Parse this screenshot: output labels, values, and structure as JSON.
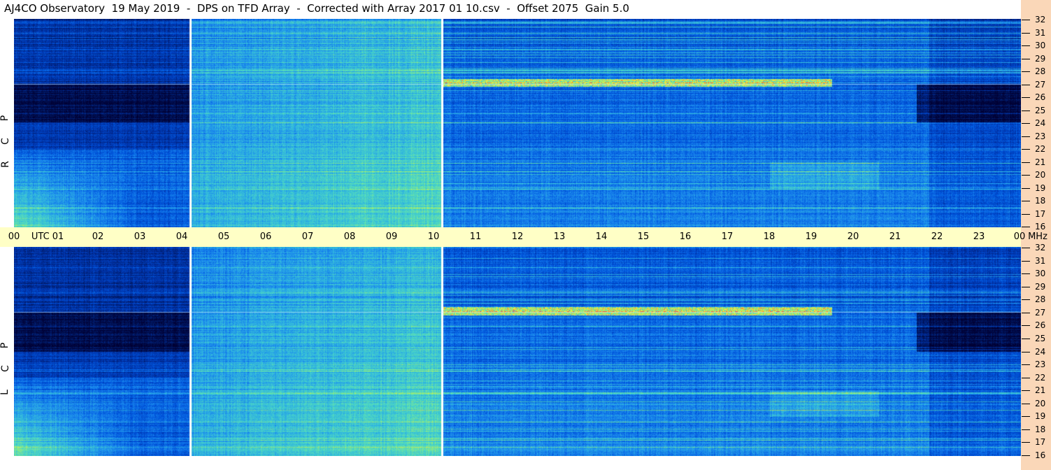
{
  "title": "AJ4CO Observatory  19 May 2019  -  DPS on TFD Array  -  Corrected with Array 2017 01 10.csv  -  Offset 2075  Gain 5.0",
  "chart_data": {
    "type": "heatmap",
    "panels": [
      {
        "name": "RCP",
        "letters": [
          "P",
          "C",
          "R"
        ]
      },
      {
        "name": "LCP",
        "letters": [
          "P",
          "C",
          "L"
        ]
      }
    ],
    "x_axis": {
      "labels": [
        "00",
        "UTC",
        "01",
        "02",
        "03",
        "04",
        "05",
        "06",
        "07",
        "08",
        "09",
        "10",
        "11",
        "12",
        "13",
        "14",
        "15",
        "16",
        "17",
        "18",
        "19",
        "20",
        "21",
        "22",
        "23",
        "00",
        "MHz"
      ],
      "hours": [
        0,
        1,
        2,
        3,
        4,
        5,
        6,
        7,
        8,
        9,
        10,
        11,
        12,
        13,
        14,
        15,
        16,
        17,
        18,
        19,
        20,
        21,
        22,
        23,
        24
      ],
      "unit_label": "MHz"
    },
    "y_axis": {
      "labels": [
        "32",
        "31",
        "30",
        "29",
        "28",
        "27",
        "26",
        "25",
        "24",
        "23",
        "22",
        "21",
        "20",
        "19",
        "18",
        "17",
        "16"
      ],
      "range": [
        16,
        32
      ],
      "unit": "MHz"
    },
    "data_gaps_utc_hours": [
      4.2,
      10.2
    ],
    "colormap": [
      "#000033",
      "#001a66",
      "#0033aa",
      "#0055dd",
      "#1a88ee",
      "#33bbdd",
      "#55ddbb",
      "#aaee66",
      "#ffee33",
      "#ff5533"
    ]
  }
}
